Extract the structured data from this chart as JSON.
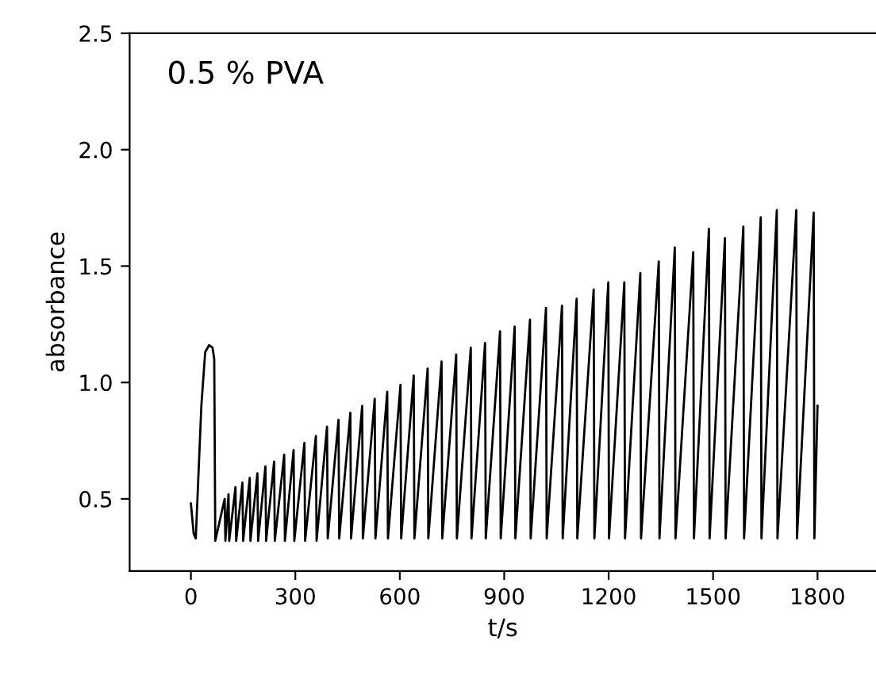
{
  "chart_data": {
    "type": "line",
    "xlabel": "t/s",
    "ylabel": "absorbance",
    "annotations": [
      "0.5 % PVA"
    ],
    "xlim": [
      -176,
      1968
    ],
    "ylim": [
      0.19,
      2.5
    ],
    "xticks": [
      0,
      300,
      600,
      900,
      1200,
      1500,
      1800
    ],
    "yticks": [
      0.5,
      {
        "value": 1.0,
        "label": "1.0"
      },
      1.5,
      {
        "value": 2.0,
        "label": "2.0"
      },
      2.5
    ],
    "marker": "none",
    "line_style": "solid",
    "series": [
      {
        "color": "#000000",
        "x": [
          0,
          8,
          14,
          30,
          41,
          52,
          62,
          67,
          70,
          97,
          99,
          108,
          110,
          128,
          130,
          148,
          150,
          169,
          171,
          191,
          193,
          214,
          216,
          239,
          241,
          268,
          270,
          295,
          297,
          326,
          328,
          359,
          361,
          391,
          393,
          424,
          426,
          458,
          460,
          492,
          494,
          528,
          530,
          564,
          566,
          602,
          604,
          640,
          642,
          680,
          682,
          720,
          722,
          762,
          764,
          804,
          806,
          845,
          847,
          888,
          890,
          930,
          932,
          974,
          976,
          1020,
          1022,
          1066,
          1068,
          1108,
          1110,
          1157,
          1159,
          1199,
          1201,
          1245,
          1247,
          1291,
          1293,
          1344,
          1346,
          1390,
          1392,
          1443,
          1445,
          1488,
          1490,
          1534,
          1536,
          1587,
          1589,
          1637,
          1639,
          1683,
          1685,
          1739,
          1741,
          1789,
          1791,
          1800
        ],
        "values": [
          0.48,
          0.35,
          0.33,
          0.9,
          1.13,
          1.16,
          1.15,
          1.1,
          0.32,
          0.5,
          0.32,
          0.52,
          0.32,
          0.55,
          0.32,
          0.57,
          0.32,
          0.59,
          0.32,
          0.61,
          0.32,
          0.64,
          0.32,
          0.66,
          0.32,
          0.69,
          0.32,
          0.71,
          0.32,
          0.74,
          0.32,
          0.77,
          0.32,
          0.81,
          0.33,
          0.84,
          0.33,
          0.87,
          0.33,
          0.9,
          0.33,
          0.93,
          0.33,
          0.96,
          0.33,
          0.99,
          0.33,
          1.03,
          0.33,
          1.06,
          0.33,
          1.09,
          0.33,
          1.12,
          0.33,
          1.15,
          0.33,
          1.17,
          0.33,
          1.22,
          0.33,
          1.24,
          0.33,
          1.27,
          0.33,
          1.32,
          0.33,
          1.33,
          0.33,
          1.36,
          0.33,
          1.4,
          0.33,
          1.43,
          0.33,
          1.43,
          0.33,
          1.47,
          0.33,
          1.52,
          0.33,
          1.58,
          0.33,
          1.56,
          0.33,
          1.66,
          0.33,
          1.62,
          0.33,
          1.67,
          0.33,
          1.71,
          0.33,
          1.74,
          0.33,
          1.74,
          0.33,
          1.73,
          0.33,
          0.9
        ]
      }
    ]
  }
}
